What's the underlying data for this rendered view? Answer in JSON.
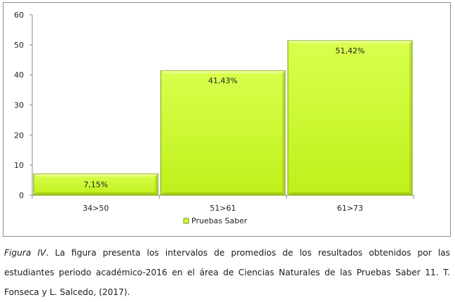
{
  "chart_data": {
    "type": "bar",
    "categories": [
      "34>50",
      "51>61",
      "61>73"
    ],
    "series": [
      {
        "name": "Pruebas Saber",
        "values": [
          7.15,
          41.43,
          51.42
        ]
      }
    ],
    "data_labels": [
      "7,15%",
      "41,43%",
      "51,42%"
    ],
    "ylim": [
      0,
      60
    ],
    "yticks": [
      "0",
      "10",
      "20",
      "30",
      "40",
      "50",
      "60"
    ],
    "grid": false,
    "legend_position": "bottom",
    "bar_color": "#ccff33",
    "bar_edge_color": "#7a9a1a"
  },
  "caption": {
    "lead": "Figura IV",
    "body": ". La figura presenta los intervalos de promedios de los resultados obtenidos por las estudiantes periodo académico-2016 en el área de Ciencias Naturales de las Pruebas Saber 11. T. Fonseca y L. Salcedo, (2017)."
  }
}
